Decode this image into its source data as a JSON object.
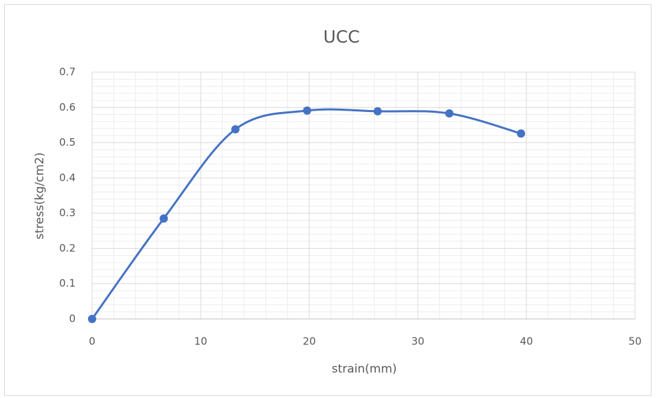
{
  "chart_data": {
    "type": "scatter",
    "smooth": true,
    "title": "UCC",
    "x_label": "strain(mm)",
    "y_label": "stress(kg/cm2)",
    "series": [
      {
        "name": "UCC",
        "color": "#4472c4",
        "x": [
          0,
          6.6,
          13.2,
          19.8,
          26.3,
          32.9,
          39.5
        ],
        "values": [
          0,
          0.285,
          0.538,
          0.591,
          0.589,
          0.583,
          0.526
        ]
      }
    ],
    "xlim": [
      0,
      50
    ],
    "xticks": [
      0,
      10,
      20,
      30,
      40,
      50
    ],
    "ylim": [
      0,
      0.7
    ],
    "yticks": [
      0,
      0.1,
      0.2,
      0.3,
      0.4,
      0.5,
      0.6,
      0.7
    ],
    "grid": true,
    "minor_grid": true
  }
}
